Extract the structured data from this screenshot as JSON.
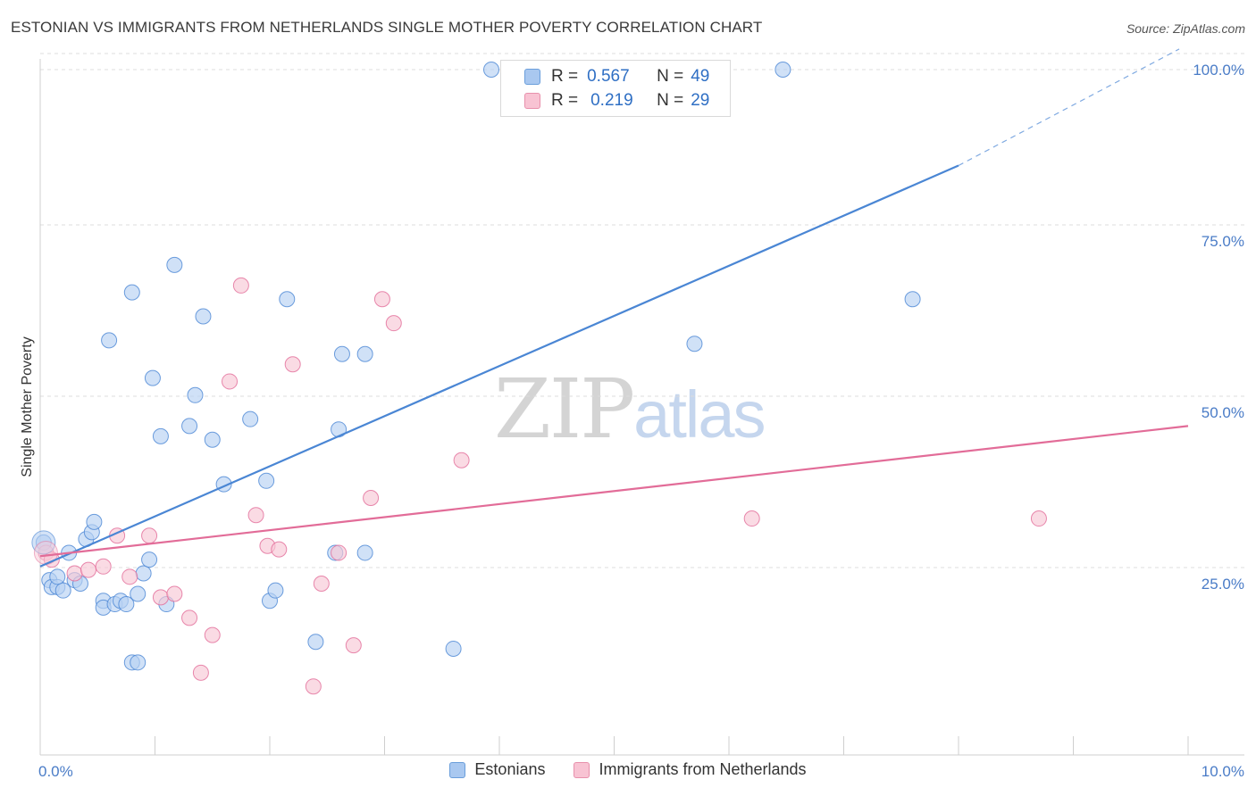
{
  "title": "ESTONIAN VS IMMIGRANTS FROM NETHERLANDS SINGLE MOTHER POVERTY CORRELATION CHART",
  "source": "Source: ZipAtlas.com",
  "watermark": {
    "zip": "ZIP",
    "atlas": "atlas"
  },
  "legend": {
    "r_label": "R =",
    "n_label": "N =",
    "rows": [
      {
        "r": "0.567",
        "n": "49",
        "color": "#a9c8f0",
        "border": "#6a9edb"
      },
      {
        "r": "0.219",
        "n": "29",
        "color": "#f8c3d3",
        "border": "#e890ac"
      }
    ]
  },
  "bottom_legend": [
    {
      "label": "Estonians",
      "color": "#a9c8f0",
      "border": "#6a9edb"
    },
    {
      "label": "Immigrants from Netherlands",
      "color": "#f8c3d3",
      "border": "#e890ac"
    }
  ],
  "chart_data": {
    "type": "scatter",
    "title": "ESTONIAN VS IMMIGRANTS FROM NETHERLANDS SINGLE MOTHER POVERTY CORRELATION CHART",
    "xlabel": "",
    "ylabel": "Single Mother Poverty",
    "xlim": [
      0,
      10
    ],
    "ylim": [
      0,
      100
    ],
    "x_tick_labels": [
      "0.0%",
      "10.0%"
    ],
    "y_tick_labels": [
      "25.0%",
      "50.0%",
      "75.0%",
      "100.0%"
    ],
    "y_ticks": [
      25,
      50,
      75,
      100
    ],
    "grid": true,
    "legend_position": "top-center",
    "series": [
      {
        "name": "Estonians",
        "color": "#4a86d4",
        "fill": "#b7d1f2",
        "r": 0.567,
        "n": 49,
        "trend": {
          "x0": 0.0,
          "y0": 27.5,
          "x1": 8.0,
          "y1": 86.0,
          "dash_to_x": 10.0,
          "dash_to_y": 103.0
        },
        "points": [
          [
            0.03,
            31
          ],
          [
            0.08,
            25.5
          ],
          [
            0.1,
            24.5
          ],
          [
            0.15,
            24.5
          ],
          [
            0.2,
            24
          ],
          [
            0.15,
            26
          ],
          [
            0.25,
            29.5
          ],
          [
            0.3,
            25.5
          ],
          [
            0.35,
            25
          ],
          [
            0.4,
            31.5
          ],
          [
            0.45,
            32.5
          ],
          [
            0.47,
            34
          ],
          [
            0.55,
            22.5
          ],
          [
            0.55,
            21.5
          ],
          [
            0.65,
            22
          ],
          [
            0.7,
            22.5
          ],
          [
            0.75,
            22
          ],
          [
            0.8,
            67.5
          ],
          [
            0.6,
            60.5
          ],
          [
            0.8,
            13.5
          ],
          [
            0.85,
            13.5
          ],
          [
            0.85,
            23.5
          ],
          [
            0.9,
            26.5
          ],
          [
            0.95,
            28.5
          ],
          [
            0.98,
            55
          ],
          [
            1.05,
            46.5
          ],
          [
            1.1,
            22
          ],
          [
            1.17,
            71.5
          ],
          [
            1.3,
            48
          ],
          [
            1.35,
            52.5
          ],
          [
            1.42,
            64
          ],
          [
            1.5,
            46
          ],
          [
            1.6,
            39.5
          ],
          [
            1.83,
            49
          ],
          [
            1.97,
            40
          ],
          [
            2.0,
            22.5
          ],
          [
            2.05,
            24
          ],
          [
            2.15,
            66.5
          ],
          [
            2.4,
            16.5
          ],
          [
            2.57,
            29.5
          ],
          [
            2.6,
            47.5
          ],
          [
            2.63,
            58.5
          ],
          [
            2.83,
            58.5
          ],
          [
            2.83,
            29.5
          ],
          [
            3.6,
            15.5
          ],
          [
            3.93,
            100
          ],
          [
            5.7,
            60
          ],
          [
            6.47,
            100
          ],
          [
            7.6,
            66.5
          ]
        ]
      },
      {
        "name": "Immigrants from Netherlands",
        "color": "#e26c98",
        "fill": "#f8c8d6",
        "r": 0.219,
        "n": 29,
        "trend": {
          "x0": 0.0,
          "y0": 29.0,
          "x1": 10.0,
          "y1": 48.0
        },
        "points": [
          [
            0.05,
            29.5
          ],
          [
            0.3,
            26.5
          ],
          [
            0.42,
            27
          ],
          [
            0.55,
            27.5
          ],
          [
            0.67,
            32
          ],
          [
            0.78,
            26
          ],
          [
            0.95,
            32
          ],
          [
            1.05,
            23
          ],
          [
            1.17,
            23.5
          ],
          [
            1.3,
            20
          ],
          [
            1.4,
            12
          ],
          [
            1.5,
            17.5
          ],
          [
            1.65,
            54.5
          ],
          [
            1.75,
            68.5
          ],
          [
            1.88,
            35
          ],
          [
            1.98,
            30.5
          ],
          [
            2.08,
            30
          ],
          [
            2.2,
            57
          ],
          [
            2.38,
            10
          ],
          [
            2.45,
            25
          ],
          [
            2.6,
            29.5
          ],
          [
            2.73,
            16
          ],
          [
            2.88,
            37.5
          ],
          [
            2.98,
            66.5
          ],
          [
            3.08,
            63
          ],
          [
            3.67,
            43
          ],
          [
            6.2,
            34.5
          ],
          [
            8.7,
            34.5
          ],
          [
            0.1,
            28.5
          ]
        ]
      }
    ]
  }
}
